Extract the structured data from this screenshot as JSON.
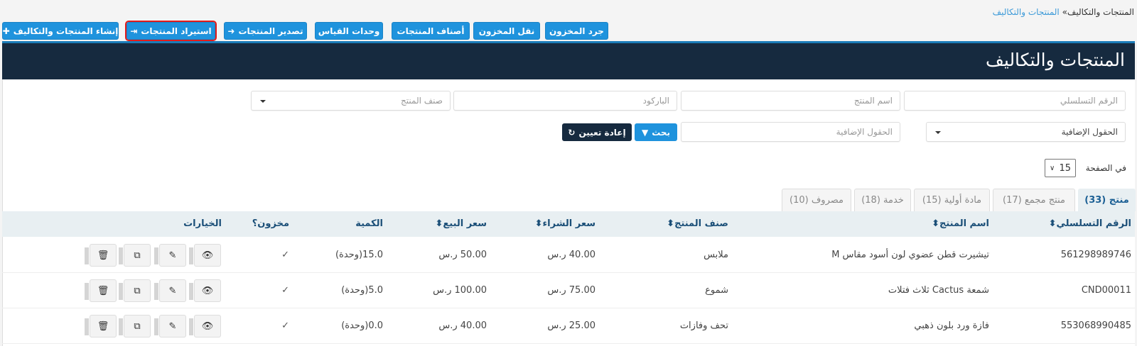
{
  "breadcrumb": {
    "current": "المنتجات والتكاليف",
    "separator": "»",
    "link": "المنتجات والتكاليف"
  },
  "toolbar": [
    {
      "label": "جرد المخزون",
      "icon": ""
    },
    {
      "label": "نقل المخزون",
      "icon": ""
    },
    {
      "label": "أصناف المنتجات",
      "icon": ""
    },
    {
      "label": "وحدات القياس",
      "icon": ""
    },
    {
      "label": "تصدير المنتجات",
      "icon": "export-icon"
    },
    {
      "label": "استيراد المنتجات",
      "icon": "import-icon",
      "highlighted": true
    },
    {
      "label": "إنشاء المنتجات والتكاليف",
      "icon": "plus-icon"
    }
  ],
  "page_title": "المنتجات والتكاليف",
  "filters": {
    "serial_placeholder": "الرقم التسلسلي",
    "name_placeholder": "اسم المنتج",
    "barcode_placeholder": "الباركود",
    "category_placeholder": "صنف المنتج",
    "extra_select": "الحقول الإضافية",
    "extra_placeholder": "الحقول الإضافية",
    "search_label": "بحث",
    "reset_label": "إعادة تعيين"
  },
  "per_page": {
    "label": "في الصفحة",
    "value": "15"
  },
  "tabs": [
    {
      "label": "منتج (33)",
      "active": true
    },
    {
      "label": "منتج مجمع (17)"
    },
    {
      "label": "مادة أولية (15)"
    },
    {
      "label": "خدمة (18)"
    },
    {
      "label": "مصروف (10)"
    }
  ],
  "table": {
    "headers": [
      "الرقم التسلسلي",
      "اسم المنتج",
      "صنف المنتج",
      "سعر الشراء",
      "سعر البيع",
      "الكمية",
      "مخزون؟",
      "الخيارات"
    ],
    "sort_icon": "⬍",
    "rows": [
      {
        "serial": "561298989746",
        "name": "تيشيرت قطن عضوي لون أسود مقاس M",
        "category": "ملابس",
        "buy": "40.00 ر.س",
        "sell": "50.00 ر.س",
        "qty": "15.0(وحدة)",
        "stored": "✓"
      },
      {
        "serial": "CND00011",
        "name": "شمعة Cactus ثلاث فتلات",
        "category": "شموع",
        "buy": "75.00 ر.س",
        "sell": "100.00 ر.س",
        "qty": "5.0(وحدة)",
        "stored": "✓"
      },
      {
        "serial": "553068990485",
        "name": "فازة ورد بلون ذهبي",
        "category": "تحف وفازات",
        "buy": "25.00 ر.س",
        "sell": "40.00 ر.س",
        "qty": "0.0(وحدة)",
        "stored": "✓"
      }
    ]
  },
  "colors": {
    "primary": "#1f93dd",
    "dark": "#162a3f",
    "highlight": "#e21b1b"
  }
}
